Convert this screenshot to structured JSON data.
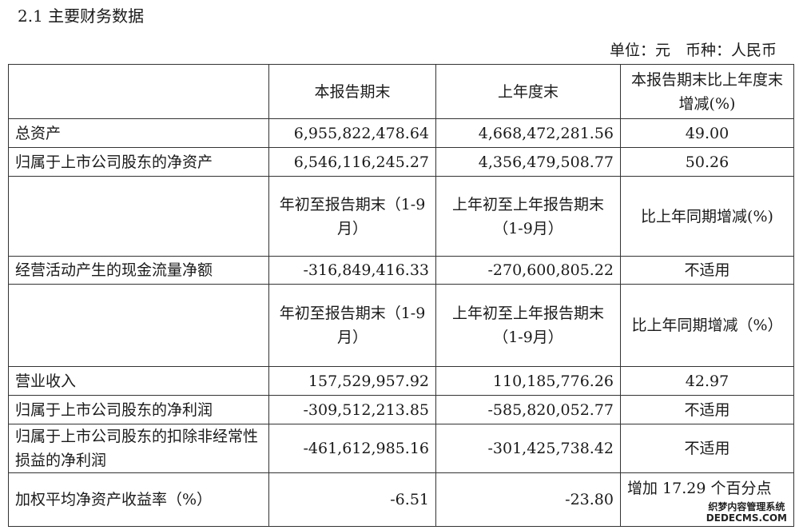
{
  "title": "2.1 主要财务数据",
  "unit": "单位：元　币种：人民币",
  "header1": {
    "c1": "本报告期末",
    "c2": "上年度末",
    "c3": "本报告期末比上年度末增减(%)"
  },
  "rows1": [
    {
      "label": "总资产",
      "v1": "6,955,822,478.64",
      "v2": "4,668,472,281.56",
      "v3": "49.00"
    },
    {
      "label": "归属于上市公司股东的净资产",
      "v1": "6,546,116,245.27",
      "v2": "4,356,479,508.77",
      "v3": "50.26"
    }
  ],
  "header2": {
    "c1": "年初至报告期末（1-9月）",
    "c2": "上年初至上年报告期末（1-9月）",
    "c3": "比上年同期增减(%)"
  },
  "rows2": [
    {
      "label": "经营活动产生的现金流量净额",
      "v1": "-316,849,416.33",
      "v2": "-270,600,805.22",
      "v3": "不适用"
    }
  ],
  "header3": {
    "c1": "年初至报告期末（1-9月）",
    "c2": "上年初至上年报告期末（1-9月）",
    "c3": "比上年同期增减（%）"
  },
  "rows3": [
    {
      "label": "营业收入",
      "v1": "157,529,957.92",
      "v2": "110,185,776.26",
      "v3": "42.97"
    },
    {
      "label": "归属于上市公司股东的净利润",
      "v1": "-309,512,213.85",
      "v2": "-585,820,052.77",
      "v3": "不适用"
    },
    {
      "label": "归属于上市公司股东的扣除非经常性损益的净利润",
      "v1": "-461,612,985.16",
      "v2": "-301,425,738.42",
      "v3": "不适用"
    },
    {
      "label": "加权平均净资产收益率（%）",
      "v1": "-6.51",
      "v2": "-23.80",
      "v3": "增加 17.29 个百分点"
    }
  ],
  "watermark": {
    "line1": "织梦内容管理系统",
    "line2": "DEDECMS.COM"
  }
}
